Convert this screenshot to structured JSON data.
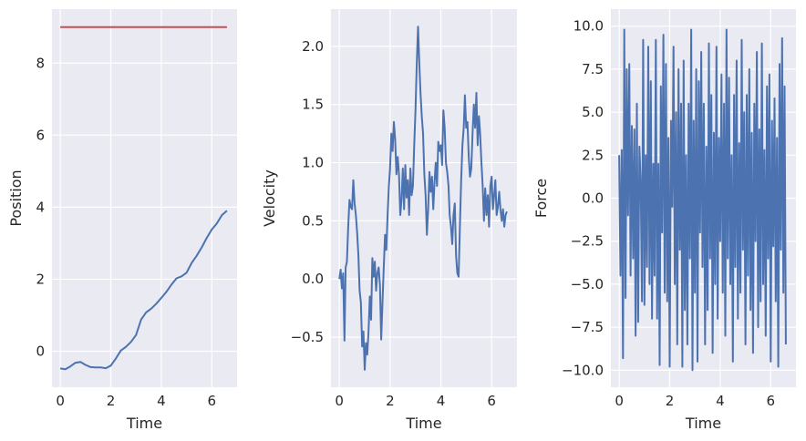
{
  "chart_data": [
    {
      "type": "line",
      "xlabel": "Time",
      "ylabel": "Position",
      "xlim": [
        -0.33,
        7.0
      ],
      "ylim": [
        -1.0,
        9.5
      ],
      "xticks": [
        "0",
        "2",
        "4",
        "6"
      ],
      "xtick_values": [
        0,
        2,
        4,
        6
      ],
      "yticks": [
        "0",
        "2",
        "4",
        "6",
        "8"
      ],
      "ytick_values": [
        0,
        2,
        4,
        6,
        8
      ],
      "grid": true,
      "series": [
        {
          "color": "#c44e52",
          "x": [
            0,
            6.6
          ],
          "y": [
            9.0,
            9.0
          ]
        },
        {
          "color": "#4c72b0",
          "x": [
            0,
            0.2,
            0.4,
            0.6,
            0.8,
            1.0,
            1.2,
            1.4,
            1.6,
            1.8,
            2.0,
            2.2,
            2.4,
            2.6,
            2.8,
            3.0,
            3.2,
            3.4,
            3.6,
            3.8,
            4.0,
            4.2,
            4.4,
            4.6,
            4.8,
            5.0,
            5.2,
            5.4,
            5.6,
            5.8,
            6.0,
            6.2,
            6.4,
            6.6
          ],
          "y": [
            -0.48,
            -0.5,
            -0.42,
            -0.32,
            -0.3,
            -0.38,
            -0.44,
            -0.45,
            -0.45,
            -0.47,
            -0.4,
            -0.2,
            0.02,
            0.12,
            0.26,
            0.45,
            0.88,
            1.08,
            1.18,
            1.32,
            1.48,
            1.65,
            1.85,
            2.02,
            2.08,
            2.18,
            2.45,
            2.65,
            2.88,
            3.15,
            3.38,
            3.55,
            3.78,
            3.9
          ]
        }
      ]
    },
    {
      "type": "line",
      "xlabel": "Time",
      "ylabel": "Velocity",
      "xlim": [
        -0.33,
        7.0
      ],
      "ylim": [
        -0.93,
        2.32
      ],
      "xticks": [
        "0",
        "2",
        "4",
        "6"
      ],
      "xtick_values": [
        0,
        2,
        4,
        6
      ],
      "yticks": [
        "−0.5",
        "0.0",
        "0.5",
        "1.0",
        "1.5",
        "2.0"
      ],
      "ytick_values": [
        -0.5,
        0.0,
        0.5,
        1.0,
        1.5,
        2.0
      ],
      "grid": true,
      "series": [
        {
          "color": "#4c72b0",
          "x": [
            0,
            0.05,
            0.1,
            0.15,
            0.2,
            0.25,
            0.3,
            0.35,
            0.4,
            0.45,
            0.5,
            0.55,
            0.6,
            0.65,
            0.7,
            0.75,
            0.8,
            0.85,
            0.9,
            0.95,
            1.0,
            1.05,
            1.1,
            1.15,
            1.2,
            1.25,
            1.3,
            1.35,
            1.4,
            1.45,
            1.5,
            1.55,
            1.6,
            1.65,
            1.7,
            1.75,
            1.8,
            1.85,
            1.9,
            1.95,
            2.0,
            2.05,
            2.1,
            2.15,
            2.2,
            2.25,
            2.3,
            2.35,
            2.4,
            2.45,
            2.5,
            2.55,
            2.6,
            2.65,
            2.7,
            2.75,
            2.8,
            2.85,
            2.9,
            2.95,
            3.0,
            3.05,
            3.1,
            3.15,
            3.2,
            3.25,
            3.3,
            3.35,
            3.4,
            3.45,
            3.5,
            3.55,
            3.6,
            3.65,
            3.7,
            3.75,
            3.8,
            3.85,
            3.9,
            3.95,
            4.0,
            4.05,
            4.1,
            4.15,
            4.2,
            4.25,
            4.3,
            4.35,
            4.4,
            4.45,
            4.5,
            4.55,
            4.6,
            4.65,
            4.7,
            4.75,
            4.8,
            4.85,
            4.9,
            4.95,
            5.0,
            5.05,
            5.1,
            5.15,
            5.2,
            5.25,
            5.3,
            5.35,
            5.4,
            5.45,
            5.5,
            5.55,
            5.6,
            5.65,
            5.7,
            5.75,
            5.8,
            5.85,
            5.9,
            5.95,
            6.0,
            6.05,
            6.1,
            6.15,
            6.2,
            6.25,
            6.3,
            6.35,
            6.4,
            6.45,
            6.5,
            6.55,
            6.6
          ],
          "y": [
            0.0,
            0.08,
            -0.08,
            0.05,
            -0.53,
            0.1,
            0.15,
            0.45,
            0.68,
            0.62,
            0.6,
            0.85,
            0.65,
            0.55,
            0.4,
            0.2,
            -0.1,
            -0.2,
            -0.58,
            -0.45,
            -0.78,
            -0.55,
            -0.65,
            -0.45,
            -0.15,
            -0.35,
            0.18,
            0.02,
            0.15,
            -0.1,
            0.05,
            0.1,
            -0.05,
            -0.52,
            -0.2,
            0.1,
            0.38,
            0.25,
            0.55,
            0.8,
            0.95,
            1.25,
            1.1,
            1.35,
            1.2,
            0.9,
            1.05,
            0.9,
            0.55,
            0.68,
            0.95,
            0.6,
            0.98,
            0.7,
            0.85,
            0.55,
            0.95,
            0.72,
            0.8,
            1.15,
            1.45,
            1.85,
            2.17,
            1.85,
            1.6,
            1.4,
            1.25,
            0.9,
            0.72,
            0.38,
            0.6,
            0.92,
            0.75,
            0.88,
            0.6,
            0.82,
            1.0,
            0.8,
            1.18,
            1.1,
            1.15,
            0.98,
            1.45,
            1.3,
            1.0,
            0.92,
            0.8,
            0.55,
            0.45,
            0.3,
            0.55,
            0.65,
            0.2,
            0.05,
            0.02,
            0.45,
            0.85,
            1.15,
            1.3,
            1.58,
            1.3,
            1.35,
            1.05,
            0.88,
            0.95,
            1.25,
            1.5,
            1.3,
            1.6,
            1.15,
            1.4,
            1.25,
            1.0,
            0.8,
            0.5,
            0.78,
            0.55,
            0.72,
            0.45,
            0.8,
            0.88,
            0.6,
            0.72,
            0.85,
            0.55,
            0.62,
            0.75,
            0.6,
            0.5,
            0.6,
            0.45,
            0.55,
            0.58
          ]
        }
      ]
    },
    {
      "type": "line",
      "xlabel": "Time",
      "ylabel": "Force",
      "xlim": [
        -0.33,
        7.0
      ],
      "ylim": [
        -10.99,
        10.99
      ],
      "xticks": [
        "0",
        "2",
        "4",
        "6"
      ],
      "xtick_values": [
        0,
        2,
        4,
        6
      ],
      "yticks": [
        "−10.0",
        "−7.5",
        "−5.0",
        "−2.5",
        "0.0",
        "2.5",
        "5.0",
        "7.5",
        "10.0"
      ],
      "ytick_values": [
        -10.0,
        -7.5,
        -5.0,
        -2.5,
        0.0,
        2.5,
        5.0,
        7.5,
        10.0
      ],
      "grid": true,
      "series": [
        {
          "color": "#4c72b0",
          "x": [
            0,
            0.05,
            0.1,
            0.15,
            0.2,
            0.25,
            0.3,
            0.35,
            0.4,
            0.45,
            0.5,
            0.55,
            0.6,
            0.65,
            0.7,
            0.75,
            0.8,
            0.85,
            0.9,
            0.95,
            1.0,
            1.05,
            1.1,
            1.15,
            1.2,
            1.25,
            1.3,
            1.35,
            1.4,
            1.45,
            1.5,
            1.55,
            1.6,
            1.65,
            1.7,
            1.75,
            1.8,
            1.85,
            1.9,
            1.95,
            2.0,
            2.05,
            2.1,
            2.15,
            2.2,
            2.25,
            2.3,
            2.35,
            2.4,
            2.45,
            2.5,
            2.55,
            2.6,
            2.65,
            2.7,
            2.75,
            2.8,
            2.85,
            2.9,
            2.95,
            3.0,
            3.05,
            3.1,
            3.15,
            3.2,
            3.25,
            3.3,
            3.35,
            3.4,
            3.45,
            3.5,
            3.55,
            3.6,
            3.65,
            3.7,
            3.75,
            3.8,
            3.85,
            3.9,
            3.95,
            4.0,
            4.05,
            4.1,
            4.15,
            4.2,
            4.25,
            4.3,
            4.35,
            4.4,
            4.45,
            4.5,
            4.55,
            4.6,
            4.65,
            4.7,
            4.75,
            4.8,
            4.85,
            4.9,
            4.95,
            5.0,
            5.05,
            5.1,
            5.15,
            5.2,
            5.25,
            5.3,
            5.35,
            5.4,
            5.45,
            5.5,
            5.55,
            5.6,
            5.65,
            5.7,
            5.75,
            5.8,
            5.85,
            5.9,
            5.95,
            6.0,
            6.05,
            6.1,
            6.15,
            6.2,
            6.25,
            6.3,
            6.35,
            6.4,
            6.45,
            6.5,
            6.55,
            6.6
          ],
          "y": [
            2.5,
            -4.5,
            2.8,
            -9.3,
            9.8,
            -5.8,
            7.5,
            -1.0,
            7.8,
            -4.5,
            4.2,
            -3.5,
            4.0,
            -8.0,
            5.5,
            -7.2,
            3.0,
            1.0,
            -6.0,
            9.2,
            -6.2,
            2.5,
            -4.0,
            8.8,
            -5.0,
            6.8,
            -7.0,
            2.0,
            -4.5,
            9.2,
            -7.0,
            2.0,
            -9.7,
            6.5,
            -2.0,
            9.5,
            -5.5,
            7.8,
            -6.0,
            3.5,
            -9.8,
            4.5,
            -0.5,
            8.8,
            -5.0,
            5.0,
            -8.5,
            7.5,
            -3.0,
            5.5,
            -9.8,
            8.0,
            -6.5,
            2.5,
            -8.5,
            5.5,
            -3.5,
            9.8,
            -10.0,
            4.5,
            -5.5,
            7.5,
            -9.5,
            6.8,
            -2.0,
            8.5,
            -4.0,
            5.5,
            -8.5,
            3.0,
            -6.5,
            9.0,
            -3.5,
            6.0,
            -9.0,
            3.8,
            -5.0,
            8.8,
            -7.0,
            3.5,
            -2.5,
            7.2,
            -5.5,
            5.5,
            -8.0,
            9.8,
            -3.5,
            7.0,
            -5.0,
            2.5,
            -9.5,
            6.0,
            -4.0,
            8.0,
            -7.0,
            3.2,
            -5.5,
            9.2,
            -3.0,
            5.0,
            -8.5,
            6.0,
            -4.5,
            7.5,
            -6.5,
            3.8,
            -9.0,
            5.5,
            -2.5,
            8.5,
            -7.5,
            4.0,
            -6.0,
            9.0,
            -5.0,
            2.8,
            -8.0,
            6.5,
            -3.5,
            7.2,
            -9.5,
            4.5,
            -2.8,
            5.8,
            -6.0,
            3.5,
            -9.8,
            7.8,
            -3.0,
            9.3,
            -5.5,
            6.5,
            -8.5
          ]
        }
      ]
    }
  ]
}
